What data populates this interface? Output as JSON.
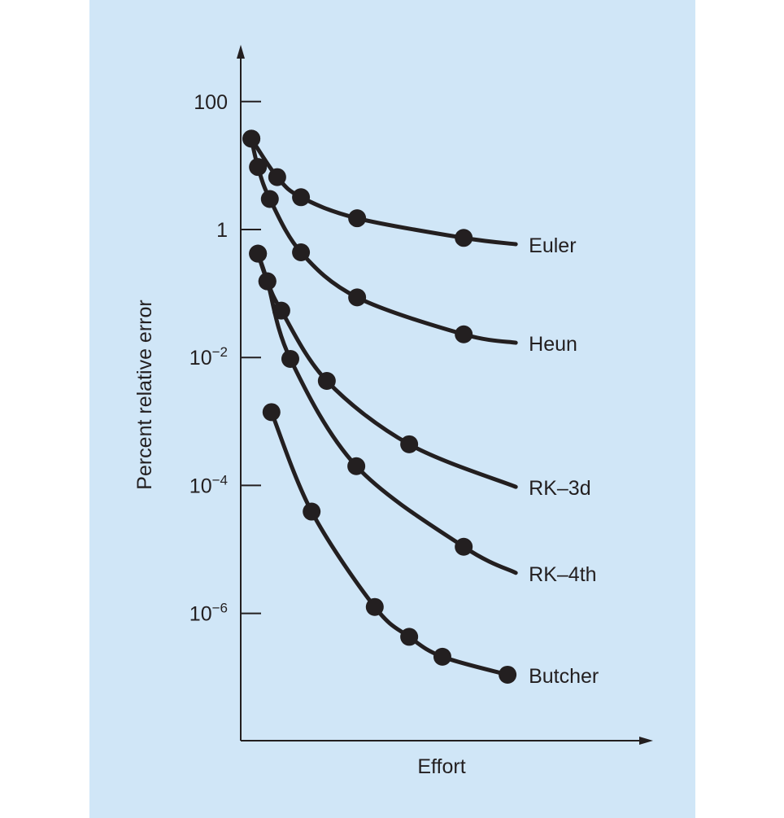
{
  "chart_data": {
    "type": "line",
    "title": "",
    "xlabel": "Effort",
    "ylabel": "Percent relative error",
    "yscale": "log",
    "xlim": [
      0,
      100
    ],
    "ylim": [
      1e-08,
      660
    ],
    "grid": false,
    "legend": "labels at line ends",
    "colors": {
      "background": "#d0e6f7",
      "ink": "#231f20"
    },
    "yticks": [
      {
        "value": 100,
        "label": "100",
        "base": "100",
        "exp": ""
      },
      {
        "value": 1,
        "label": "1",
        "base": "1",
        "exp": ""
      },
      {
        "value": 0.01,
        "label": "10^-2",
        "base": "10",
        "exp": "−2"
      },
      {
        "value": 0.0001,
        "label": "10^-4",
        "base": "10",
        "exp": "−4"
      },
      {
        "value": 1e-06,
        "label": "10^-6",
        "base": "10",
        "exp": "−6"
      }
    ],
    "series": [
      {
        "name": "Euler",
        "x": [
          2.6,
          8.9,
          14.7,
          28.4,
          54.4,
          67.1
        ],
        "y": [
          26.3,
          6.6,
          3.2,
          1.5,
          0.74,
          0.59
        ],
        "markers": [
          true,
          true,
          true,
          true,
          true,
          false
        ]
      },
      {
        "name": "Heun",
        "x": [
          2.6,
          4.2,
          7.1,
          14.7,
          28.4,
          54.4,
          67.1
        ],
        "y": [
          26.3,
          9.5,
          3.0,
          0.44,
          0.087,
          0.023,
          0.017
        ],
        "markers": [
          true,
          true,
          true,
          true,
          true,
          true,
          false
        ]
      },
      {
        "name": "RK–3d",
        "x": [
          4.2,
          6.5,
          9.9,
          21.0,
          41.1,
          67.1
        ],
        "y": [
          0.42,
          0.155,
          0.054,
          0.0043,
          0.00044,
          9.5e-05
        ],
        "markers": [
          true,
          true,
          true,
          true,
          true,
          false
        ]
      },
      {
        "name": "RK–4th",
        "x": [
          4.2,
          6.5,
          12.1,
          28.2,
          54.4,
          67.1
        ],
        "y": [
          0.42,
          0.155,
          0.0095,
          0.0002,
          1.1e-05,
          4.3e-06
        ],
        "markers": [
          true,
          true,
          true,
          true,
          true,
          false
        ]
      },
      {
        "name": "Butcher",
        "x": [
          7.5,
          17.3,
          32.7,
          41.1,
          49.2,
          65.1
        ],
        "y": [
          0.0014,
          3.9e-05,
          1.26e-06,
          4.3e-07,
          2.1e-07,
          1.1e-07
        ],
        "markers": [
          true,
          true,
          true,
          true,
          true,
          true
        ]
      }
    ]
  }
}
